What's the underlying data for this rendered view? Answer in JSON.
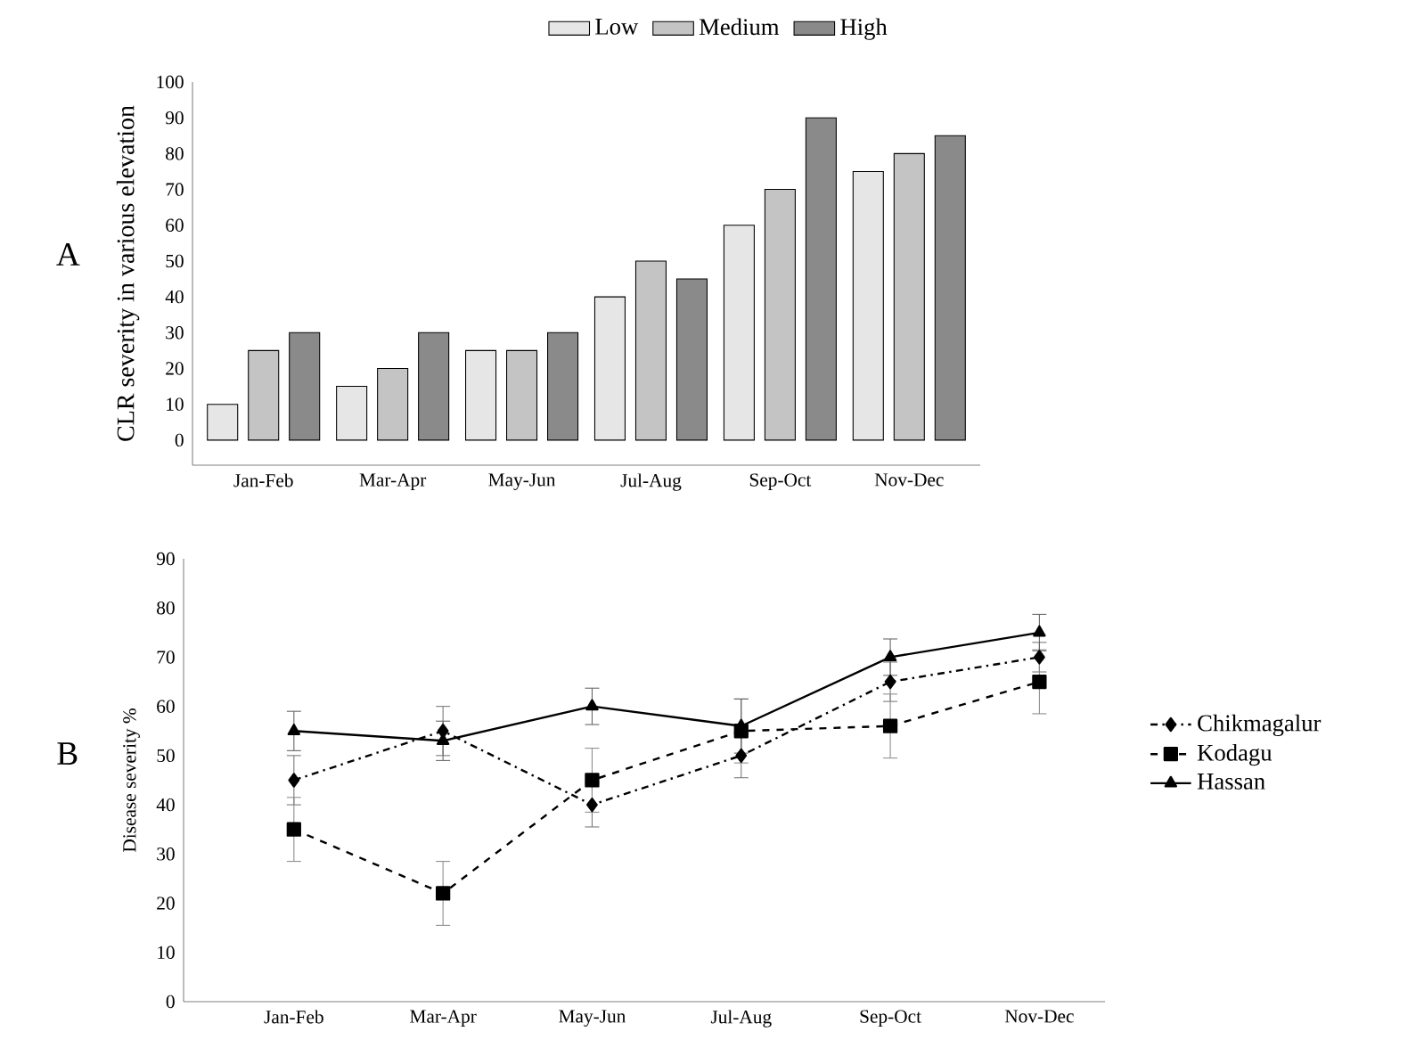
{
  "chart_data": [
    {
      "type": "bar",
      "ylabel": "CLR severity in various elevation",
      "annotations": [
        "A"
      ],
      "categories": [
        "Jan-Feb",
        "Mar-Apr",
        "May-Jun",
        "Jul-Aug",
        "Sep-Oct",
        "Nov-Dec"
      ],
      "series": [
        {
          "name": "Low",
          "color": "#e6e6e6",
          "values": [
            10,
            15,
            25,
            40,
            60,
            75
          ]
        },
        {
          "name": "Medium",
          "color": "#c4c4c4",
          "values": [
            25,
            20,
            25,
            50,
            70,
            80
          ]
        },
        {
          "name": "High",
          "color": "#8a8a8a",
          "values": [
            30,
            30,
            30,
            45,
            90,
            85
          ]
        }
      ],
      "ylim": [
        -7,
        100
      ],
      "yticks": [
        0,
        10,
        20,
        30,
        40,
        50,
        60,
        70,
        80,
        90,
        100
      ],
      "grid": false,
      "legend": "top"
    },
    {
      "type": "line",
      "ylabel": "Disease severity %",
      "annotations": [
        "B"
      ],
      "categories": [
        "Jan-Feb",
        "Mar-Apr",
        "May-Jun",
        "Jul-Aug",
        "Sep-Oct",
        "Nov-Dec"
      ],
      "series": [
        {
          "name": "Chikmagalur",
          "color": "#000000",
          "marker": "diamond",
          "line_style": "dashdot",
          "values": [
            45,
            55,
            40,
            50,
            65,
            70
          ],
          "errors": [
            5,
            5,
            4.5,
            4.5,
            4,
            3
          ]
        },
        {
          "name": "Kodagu",
          "color": "#000000",
          "marker": "square",
          "line_style": "dashed",
          "values": [
            35,
            22,
            45,
            55,
            56,
            65
          ],
          "errors": [
            6.5,
            6.5,
            6.5,
            6.5,
            6.5,
            6.5
          ]
        },
        {
          "name": "Hassan",
          "color": "#000000",
          "marker": "triangle",
          "line_style": "solid",
          "values": [
            55,
            53,
            60,
            56,
            70,
            75
          ],
          "errors": [
            4,
            4,
            3.7,
            5.5,
            3.7,
            3.7
          ]
        }
      ],
      "ylim": [
        0,
        90
      ],
      "yticks": [
        0,
        10,
        20,
        30,
        40,
        50,
        60,
        70,
        80,
        90
      ],
      "grid": false,
      "legend": "right"
    }
  ]
}
